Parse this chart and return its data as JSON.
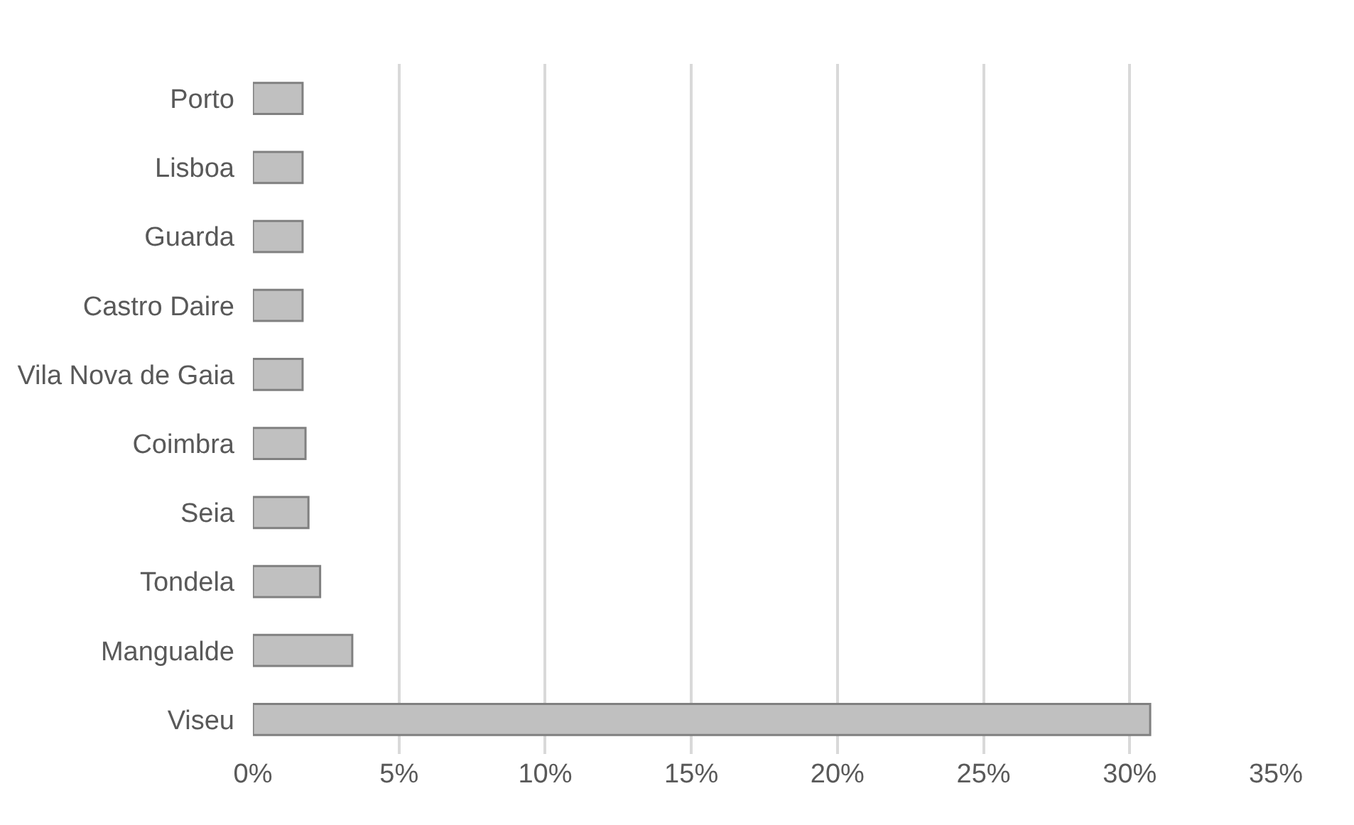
{
  "chart_data": {
    "type": "bar",
    "orientation": "horizontal",
    "categories": [
      "Porto",
      "Lisboa",
      "Guarda",
      "Castro Daire",
      "Vila Nova de Gaia",
      "Coimbra",
      "Seia",
      "Tondela",
      "Mangualde",
      "Viseu"
    ],
    "values": [
      1.7,
      1.7,
      1.7,
      1.7,
      1.7,
      1.8,
      1.9,
      2.3,
      3.4,
      30.7
    ],
    "color": "#c0c0c0",
    "xlim": [
      0,
      35
    ],
    "xticks": [
      {
        "value": 0,
        "label": "0%"
      },
      {
        "value": 5,
        "label": "5%"
      },
      {
        "value": 10,
        "label": "10%"
      },
      {
        "value": 15,
        "label": "15%"
      },
      {
        "value": 20,
        "label": "20%"
      },
      {
        "value": 25,
        "label": "25%"
      },
      {
        "value": 30,
        "label": "30%"
      },
      {
        "value": 35,
        "label": "35%"
      }
    ],
    "grid": "x"
  }
}
